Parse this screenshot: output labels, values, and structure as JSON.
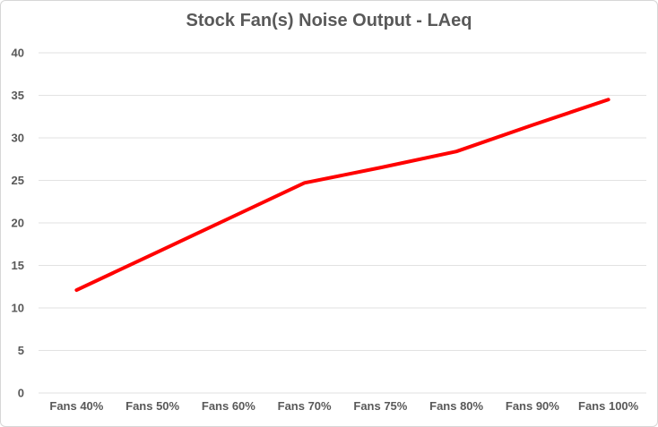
{
  "chart_data": {
    "type": "line",
    "title": "Stock Fan(s) Noise Output - LAeq",
    "categories": [
      "Fans 40%",
      "Fans 50%",
      "Fans 60%",
      "Fans 70%",
      "Fans 75%",
      "Fans 80%",
      "Fans 90%",
      "Fans 100%"
    ],
    "values": [
      12.1,
      16.3,
      20.5,
      24.7,
      26.5,
      28.4,
      31.5,
      34.5
    ],
    "xlabel": "",
    "ylabel": "",
    "ylim": [
      0,
      40
    ],
    "y_ticks": [
      0,
      5,
      10,
      15,
      20,
      25,
      30,
      35,
      40
    ],
    "grid": true,
    "legend_position": "none",
    "line_color": "#FF0000",
    "text_color": "#595959",
    "gridline_color": "#E2E2E2",
    "border_color": "#D6D6D6",
    "background_color": "#FFFFFF"
  }
}
